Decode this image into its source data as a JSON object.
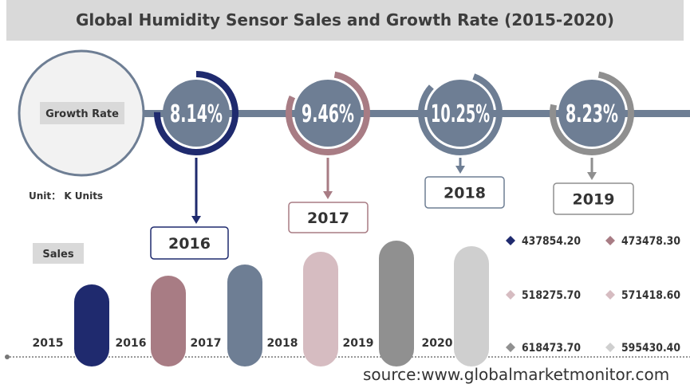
{
  "title": "Global Humidity Sensor Sales and Growth Rate (2015-2020)",
  "unit_label": "Unit： K Units",
  "source": "source:www.globalmarketmonitor.com",
  "chart_data": [
    {
      "type": "area",
      "title": "Growth Rate",
      "series": [
        {
          "name": "Growth Rate",
          "values": [
            "8.14%",
            "9.46%",
            "10.25%",
            "8.23%"
          ],
          "numeric": [
            8.14,
            9.46,
            10.25,
            8.23
          ]
        }
      ],
      "categories": [
        "2016",
        "2017",
        "2018",
        "2019"
      ],
      "colors": [
        "#1f2a6e",
        "#a87c84",
        "#6e7e94",
        "#8f8f8f"
      ]
    },
    {
      "type": "bar",
      "title": "Sales",
      "categories": [
        "2015",
        "2016",
        "2017",
        "2018",
        "2019",
        "2020"
      ],
      "values": [
        437854.2,
        473478.3,
        518275.7,
        571418.6,
        618473.7,
        595430.4
      ],
      "value_labels": [
        "437854.20",
        "473478.30",
        "518275.70",
        "571418.60",
        "618473.70",
        "595430.40"
      ],
      "colors": [
        "#1f2a6e",
        "#a87c84",
        "#6e7e94",
        "#d6bcc1",
        "#909090",
        "#cfcfcf"
      ],
      "legend_colors": [
        "#1f2a6e",
        "#a87c84",
        "#d6bcc1",
        "#d6bcc1",
        "#909090",
        "#cfcfcf"
      ]
    }
  ]
}
